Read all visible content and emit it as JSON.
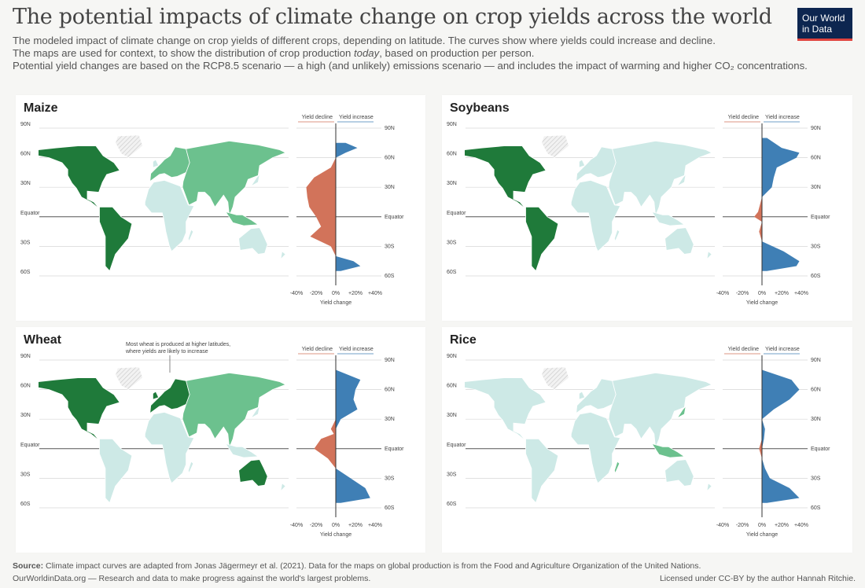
{
  "header": {
    "title": "The potential impacts of climate change on crop yields across the world",
    "subtitle_1": "The modeled impact of climate change on crop yields of different crops, depending on latitude. The curves show where yields could increase and decline.",
    "subtitle_2a": "The maps are used for context, to show the distribution of crop production ",
    "subtitle_2b": "today",
    "subtitle_2c": ", based on production per person.",
    "subtitle_3": "Potential yield changes are based on the RCP8.5 scenario — a high (and unlikely) emissions scenario — and includes the impact of warming and higher CO₂ concentrations.",
    "logo_line1": "Our World",
    "logo_line2": "in Data"
  },
  "common": {
    "lat_labels": [
      "90N",
      "60N",
      "30N",
      "Equator",
      "30S",
      "60S"
    ],
    "x_ticks": [
      "-40%",
      "-20%",
      "0%",
      "+20%",
      "+40%"
    ],
    "x_label": "Yield change",
    "decline_label": "Yield decline",
    "increase_label": "Yield increase",
    "colors": {
      "decline": "#d2735a",
      "increase": "#3f7fb5",
      "map_dark": "#1f7a3a",
      "map_mid": "#6cc18e",
      "map_light": "#cde9e6"
    }
  },
  "annotation": {
    "line1": "Most wheat is produced at higher latitudes,",
    "line2": "where yields are likely to increase"
  },
  "chart_data": [
    {
      "type": "area",
      "title": "Maize",
      "xlabel": "Yield change",
      "xlim": [
        -40,
        40
      ],
      "y": [
        75,
        70,
        65,
        60,
        50,
        40,
        30,
        20,
        10,
        0,
        -10,
        -20,
        -30,
        -40,
        -45,
        -50,
        -55
      ],
      "values": [
        10,
        22,
        10,
        0,
        -5,
        -22,
        -30,
        -29,
        -27,
        -20,
        -15,
        -26,
        -5,
        0,
        18,
        25,
        5
      ]
    },
    {
      "type": "area",
      "title": "Soybeans",
      "xlabel": "Yield change",
      "xlim": [
        -40,
        40
      ],
      "y": [
        80,
        70,
        65,
        60,
        55,
        50,
        40,
        30,
        20,
        5,
        0,
        -5,
        -15,
        -25,
        -35,
        -45,
        -50,
        -55
      ],
      "values": [
        5,
        20,
        38,
        35,
        25,
        15,
        12,
        10,
        0,
        -4,
        -8,
        0,
        -3,
        0,
        22,
        38,
        35,
        5
      ]
    },
    {
      "type": "area",
      "title": "Wheat",
      "xlabel": "Yield change",
      "xlim": [
        -40,
        40
      ],
      "y": [
        80,
        70,
        60,
        50,
        40,
        30,
        20,
        15,
        10,
        0,
        -10,
        -20,
        -30,
        -40,
        -50,
        -55
      ],
      "values": [
        0,
        25,
        20,
        18,
        22,
        5,
        -5,
        -2,
        -15,
        -22,
        -8,
        0,
        15,
        30,
        35,
        5
      ]
    },
    {
      "type": "area",
      "title": "Rice",
      "xlabel": "Yield change",
      "xlim": [
        -40,
        40
      ],
      "y": [
        80,
        70,
        60,
        50,
        40,
        30,
        20,
        10,
        0,
        -10,
        -20,
        -30,
        -40,
        -50,
        -55
      ],
      "values": [
        0,
        30,
        38,
        28,
        12,
        0,
        3,
        2,
        -3,
        0,
        3,
        8,
        28,
        38,
        5
      ]
    }
  ],
  "footer": {
    "source_label": "Source:",
    "source": " Climate impact curves are adapted from Jonas Jägermeyr et al. (2021). Data for the maps on global production is from the Food and Agriculture Organization of the United Nations.",
    "org": "OurWorldinData.org — Research and data to make progress against the world's largest problems.",
    "license": "Licensed under CC-BY by the author Hannah Ritchie."
  }
}
